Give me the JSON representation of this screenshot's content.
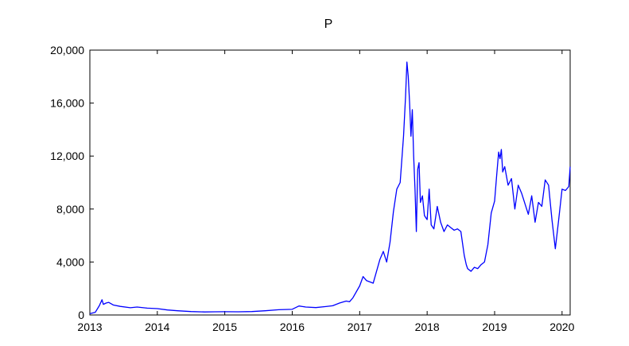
{
  "chart_data": {
    "type": "line",
    "title": "P",
    "xlabel": "",
    "ylabel": "",
    "xlim": [
      2013.0,
      2020.12
    ],
    "ylim": [
      0,
      20000
    ],
    "grid": false,
    "legend": "none",
    "x_ticks": [
      {
        "value": 2013,
        "label": "2013"
      },
      {
        "value": 2014,
        "label": "2014"
      },
      {
        "value": 2015,
        "label": "2015"
      },
      {
        "value": 2016,
        "label": "2016"
      },
      {
        "value": 2017,
        "label": "2017"
      },
      {
        "value": 2018,
        "label": "2018"
      },
      {
        "value": 2019,
        "label": "2019"
      },
      {
        "value": 2020,
        "label": "2020"
      }
    ],
    "y_ticks": [
      {
        "value": 0,
        "label": "0"
      },
      {
        "value": 4000,
        "label": "4,000"
      },
      {
        "value": 8000,
        "label": "8,000"
      },
      {
        "value": 12000,
        "label": "12,000"
      },
      {
        "value": 16000,
        "label": "16,000"
      },
      {
        "value": 20000,
        "label": "20,000"
      }
    ],
    "series": [
      {
        "color": "#0000ff",
        "x": [
          2013.0,
          2013.08,
          2013.14,
          2013.18,
          2013.2,
          2013.24,
          2013.28,
          2013.35,
          2013.45,
          2013.6,
          2013.7,
          2013.85,
          2014.0,
          2014.15,
          2014.3,
          2014.5,
          2014.7,
          2014.85,
          2015.0,
          2015.2,
          2015.4,
          2015.6,
          2015.8,
          2016.0,
          2016.1,
          2016.2,
          2016.35,
          2016.5,
          2016.6,
          2016.7,
          2016.8,
          2016.85,
          2016.9,
          2017.0,
          2017.05,
          2017.1,
          2017.2,
          2017.3,
          2017.35,
          2017.4,
          2017.45,
          2017.5,
          2017.55,
          2017.6,
          2017.65,
          2017.68,
          2017.7,
          2017.72,
          2017.74,
          2017.76,
          2017.78,
          2017.8,
          2017.82,
          2017.84,
          2017.86,
          2017.88,
          2017.9,
          2017.93,
          2017.96,
          2018.0,
          2018.03,
          2018.06,
          2018.1,
          2018.15,
          2018.2,
          2018.25,
          2018.3,
          2018.35,
          2018.4,
          2018.45,
          2018.5,
          2018.55,
          2018.58,
          2018.6,
          2018.65,
          2018.7,
          2018.75,
          2018.8,
          2018.85,
          2018.9,
          2018.95,
          2019.0,
          2019.03,
          2019.06,
          2019.08,
          2019.1,
          2019.12,
          2019.15,
          2019.2,
          2019.25,
          2019.3,
          2019.35,
          2019.4,
          2019.45,
          2019.5,
          2019.55,
          2019.6,
          2019.65,
          2019.7,
          2019.75,
          2019.8,
          2019.85,
          2019.9,
          2019.95,
          2020.0,
          2020.05,
          2020.1,
          2020.12
        ],
        "y": [
          100,
          200,
          700,
          1150,
          800,
          900,
          950,
          750,
          650,
          550,
          600,
          520,
          480,
          380,
          320,
          260,
          230,
          240,
          250,
          240,
          260,
          320,
          400,
          430,
          680,
          600,
          560,
          640,
          700,
          900,
          1050,
          1000,
          1300,
          2200,
          2900,
          2600,
          2400,
          4200,
          4800,
          4000,
          5500,
          7800,
          9500,
          10000,
          13500,
          16500,
          19100,
          18000,
          16000,
          13500,
          15500,
          12000,
          9500,
          6300,
          11000,
          11500,
          8500,
          9000,
          7500,
          7200,
          9500,
          6800,
          6500,
          8200,
          7000,
          6300,
          6800,
          6600,
          6400,
          6500,
          6300,
          4500,
          3800,
          3500,
          3300,
          3600,
          3500,
          3800,
          4000,
          5300,
          7700,
          8600,
          10500,
          12300,
          11800,
          12500,
          10800,
          11200,
          9800,
          10300,
          8000,
          9800,
          9200,
          8400,
          7600,
          9000,
          7000,
          8500,
          8200,
          10200,
          9800,
          7200,
          5000,
          7200,
          9500,
          9400,
          9700,
          11200
        ]
      }
    ]
  }
}
